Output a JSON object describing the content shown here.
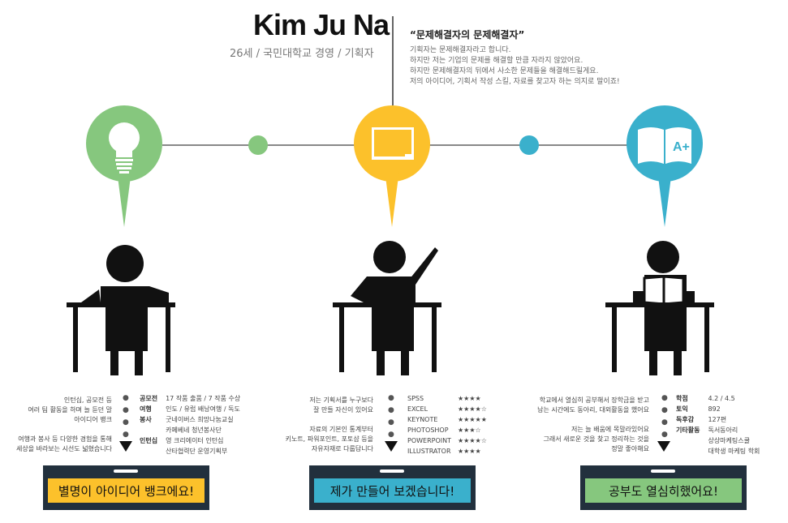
{
  "header": {
    "name": "Kim Ju Na",
    "subtitle": "26세 / 국민대학교 경영 / 기획자",
    "quote": "“문제해결자의 문제해결자”",
    "description": [
      "기획자는 문제해결자라고 합니다.",
      "하지만 저는 기업의 문제를 해결할 만큼 자라지 않았어요.",
      "하지만 문제해결자의 뒤에서 사소한 문제들을 해결해드릴게요.",
      "저의 아이디어, 기획서 작성 스킬, 자료를 찾고자 하는 의지로 말이죠!"
    ]
  },
  "colors": {
    "green": "#86c77e",
    "yellow": "#fcc12b",
    "blue": "#3ab0cc",
    "banner_bg": "#22303d"
  },
  "columns": [
    {
      "icon": "lightbulb-icon",
      "text_lines": [
        "인턴십, 공모전 등",
        "여러 팀 활동을 하며 늘 듣던 말",
        "아이디어 뱅크",
        "",
        "여행과 봉사 등 다양한 경험을 통해",
        "세상을 바라보는 시선도 넓혔습니다"
      ],
      "details": [
        {
          "key": "공모전",
          "value": "17 작품 출품 / 7 작품 수상"
        },
        {
          "key": "여행",
          "value": "인도 / 유럽 배낭여행 / 독도"
        },
        {
          "key": "봉사",
          "value": "굿네이버스 희망나눔교실"
        },
        {
          "key": "",
          "value": "카페베네 청년봉사단"
        },
        {
          "key": "인턴십",
          "value": "영 크리에이터 인턴십"
        },
        {
          "key": "",
          "value": "산타협력단 운영기획부"
        }
      ],
      "banner": "별명이 아이디어 뱅크에요!"
    },
    {
      "icon": "blackboard-icon",
      "text_lines": [
        "저는 기획서를 누구보다",
        "잘 만들 자신이 있어요",
        "",
        "자료의 기본인 통계부터",
        "키노트, 파워포인트, 포토샵 등을",
        "자유자재로 다룹답니다"
      ],
      "skills": [
        {
          "name": "SPSS",
          "stars": "★★★★"
        },
        {
          "name": "EXCEL",
          "stars": "★★★★☆"
        },
        {
          "name": "KEYNOTE",
          "stars": "★★★★★"
        },
        {
          "name": "PHOTOSHOP",
          "stars": "★★★☆"
        },
        {
          "name": "POWERPOINT",
          "stars": "★★★★☆"
        },
        {
          "name": "ILLUSTRATOR",
          "stars": "★★★★"
        }
      ],
      "banner": "제가 만들어 보겠습니다!"
    },
    {
      "icon": "open-book-icon",
      "book_label": "A+",
      "text_lines": [
        "학교에서 열심히 공부해서 장학금을 받고",
        "남는 시간에도 동아리, 대외활동을 했어요",
        "",
        "저는 늘 배움에 목말라있어요",
        "그래서 새로운 것을 찾고 정리하는 것을",
        "정말 좋아해요"
      ],
      "details": [
        {
          "key": "학점",
          "value": "4.2 / 4.5"
        },
        {
          "key": "토익",
          "value": "892"
        },
        {
          "key": "독후감",
          "value": "127편"
        },
        {
          "key": "기타활동",
          "value": "독서동아리"
        },
        {
          "key": "",
          "value": "상상마케팅스쿨"
        },
        {
          "key": "",
          "value": "대학생 마케팅 학회"
        }
      ],
      "banner": "공부도 열심히했어요!"
    }
  ]
}
